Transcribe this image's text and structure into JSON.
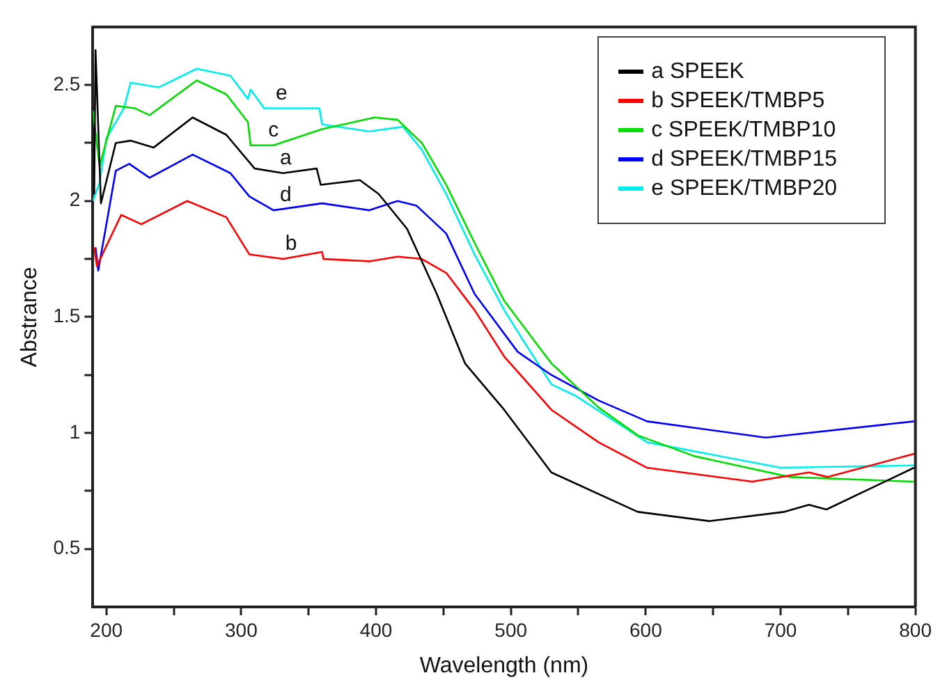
{
  "chart_data": {
    "type": "line",
    "xlabel": "Wavelength (nm)",
    "ylabel": "Abstrance",
    "xlim": [
      190,
      800
    ],
    "ylim": [
      0.25,
      2.75
    ],
    "xticks": [
      200,
      {
        "value": 250,
        "label": null
      },
      300,
      {
        "value": 350,
        "label": null
      },
      400,
      {
        "value": 450,
        "label": null
      },
      500,
      {
        "value": 550,
        "label": null
      },
      600,
      {
        "value": 650,
        "label": null
      },
      700,
      {
        "value": 750,
        "label": null
      },
      800
    ],
    "yticks": [
      0.5,
      {
        "value": 0.75,
        "label": null
      },
      1.0,
      {
        "value": 1.25,
        "label": null
      },
      1.5,
      {
        "value": 1.75,
        "label": null
      },
      2.0,
      {
        "value": 2.25,
        "label": null
      },
      2.5
    ],
    "grid": false,
    "legend": "top right",
    "marker": "none",
    "line_style": "solid",
    "series": [
      {
        "name": "a SPEEK",
        "color": "#000000",
        "x": [
          191,
          192,
          196,
          207,
          218,
          235,
          264,
          289,
          310,
          331,
          356,
          359,
          388,
          402,
          423,
          445,
          459,
          466,
          495,
          530,
          594,
          647,
          703,
          721,
          734,
          799
        ],
        "values": [
          2.03,
          2.65,
          1.99,
          2.25,
          2.26,
          2.23,
          2.36,
          2.285,
          2.14,
          2.12,
          2.14,
          2.07,
          2.09,
          2.03,
          1.88,
          1.6,
          1.4,
          1.3,
          1.1,
          0.83,
          0.66,
          0.62,
          0.66,
          0.69,
          0.67,
          0.85
        ]
      },
      {
        "name": "b SPEEK/TMBP5",
        "color": "#ff0000",
        "x": [
          191,
          193,
          211,
          226,
          260,
          289,
          306,
          331,
          360,
          361,
          395,
          416,
          434,
          452,
          473,
          495,
          530,
          565,
          601,
          679,
          721,
          735,
          799
        ],
        "values": [
          1.8,
          1.72,
          1.94,
          1.9,
          2.0,
          1.93,
          1.77,
          1.75,
          1.78,
          1.75,
          1.74,
          1.76,
          1.75,
          1.69,
          1.53,
          1.33,
          1.1,
          0.96,
          0.85,
          0.79,
          0.83,
          0.81,
          0.91
        ]
      },
      {
        "name": "c SPEEK/TMBP10",
        "color": "#00dd00",
        "x": [
          190,
          195,
          207,
          221,
          232,
          267,
          289,
          305,
          307,
          324,
          360,
          399,
          416,
          434,
          452,
          473,
          495,
          530,
          565,
          594,
          636,
          707,
          799
        ],
        "values": [
          2.39,
          2.15,
          2.41,
          2.4,
          2.37,
          2.52,
          2.46,
          2.34,
          2.24,
          2.24,
          2.31,
          2.36,
          2.35,
          2.25,
          2.07,
          1.82,
          1.57,
          1.3,
          1.11,
          0.99,
          0.9,
          0.81,
          0.79
        ]
      },
      {
        "name": "d SPEEK/TMBP15",
        "color": "#0000ff",
        "x": [
          192,
          194,
          207,
          217,
          232,
          264,
          292,
          306,
          324,
          360,
          395,
          416,
          430,
          452,
          473,
          505,
          530,
          565,
          601,
          689,
          799
        ],
        "values": [
          1.8,
          1.7,
          2.13,
          2.16,
          2.1,
          2.2,
          2.12,
          2.02,
          1.96,
          1.99,
          1.96,
          2.0,
          1.98,
          1.86,
          1.6,
          1.35,
          1.25,
          1.14,
          1.05,
          0.98,
          1.05
        ]
      },
      {
        "name": "e SPEEK/TMBP20",
        "color": "#00eeee",
        "x": [
          190,
          195,
          200,
          213,
          218,
          239,
          267,
          292,
          305,
          307,
          317,
          358,
          360,
          395,
          420,
          434,
          452,
          473,
          495,
          509,
          530,
          548,
          601,
          700,
          799
        ],
        "values": [
          2.0,
          2.08,
          2.27,
          2.4,
          2.51,
          2.49,
          2.57,
          2.54,
          2.44,
          2.48,
          2.4,
          2.4,
          2.33,
          2.3,
          2.32,
          2.22,
          2.03,
          1.77,
          1.53,
          1.4,
          1.21,
          1.16,
          0.96,
          0.85,
          0.86
        ]
      }
    ],
    "annotations": [
      {
        "text": "a",
        "x": 333,
        "y": 2.12
      },
      {
        "text": "b",
        "x": 337,
        "y": 1.75
      },
      {
        "text": "c",
        "x": 324,
        "y": 2.24
      },
      {
        "text": "d",
        "x": 333,
        "y": 1.96
      },
      {
        "text": "e",
        "x": 330,
        "y": 2.4
      }
    ]
  }
}
